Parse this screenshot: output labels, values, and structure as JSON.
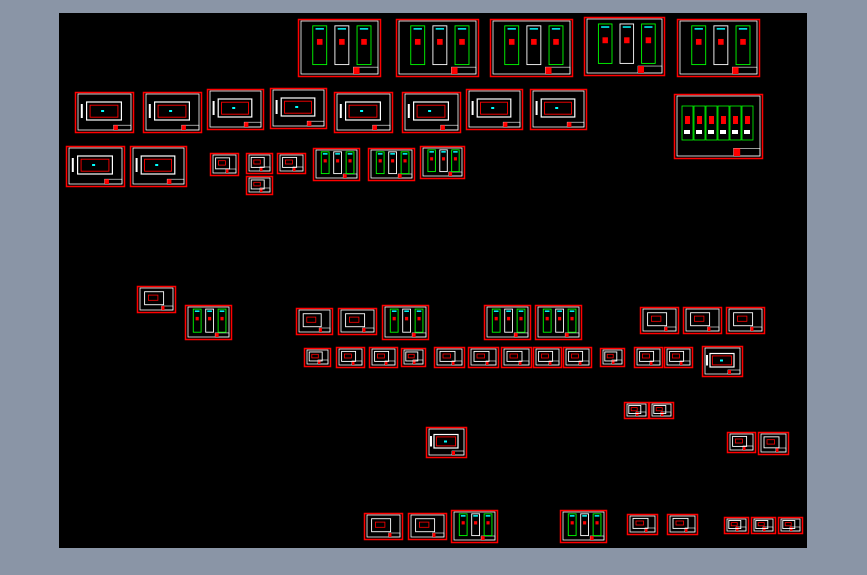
{
  "viewport": {
    "background_color": "#8a95a6",
    "canvas_color": "#000000"
  },
  "colors": {
    "sheet_border": "#ff0000",
    "inner_frame": "#ffffff",
    "highlight": "#00ff00",
    "accent": "#00ffff"
  }
}
